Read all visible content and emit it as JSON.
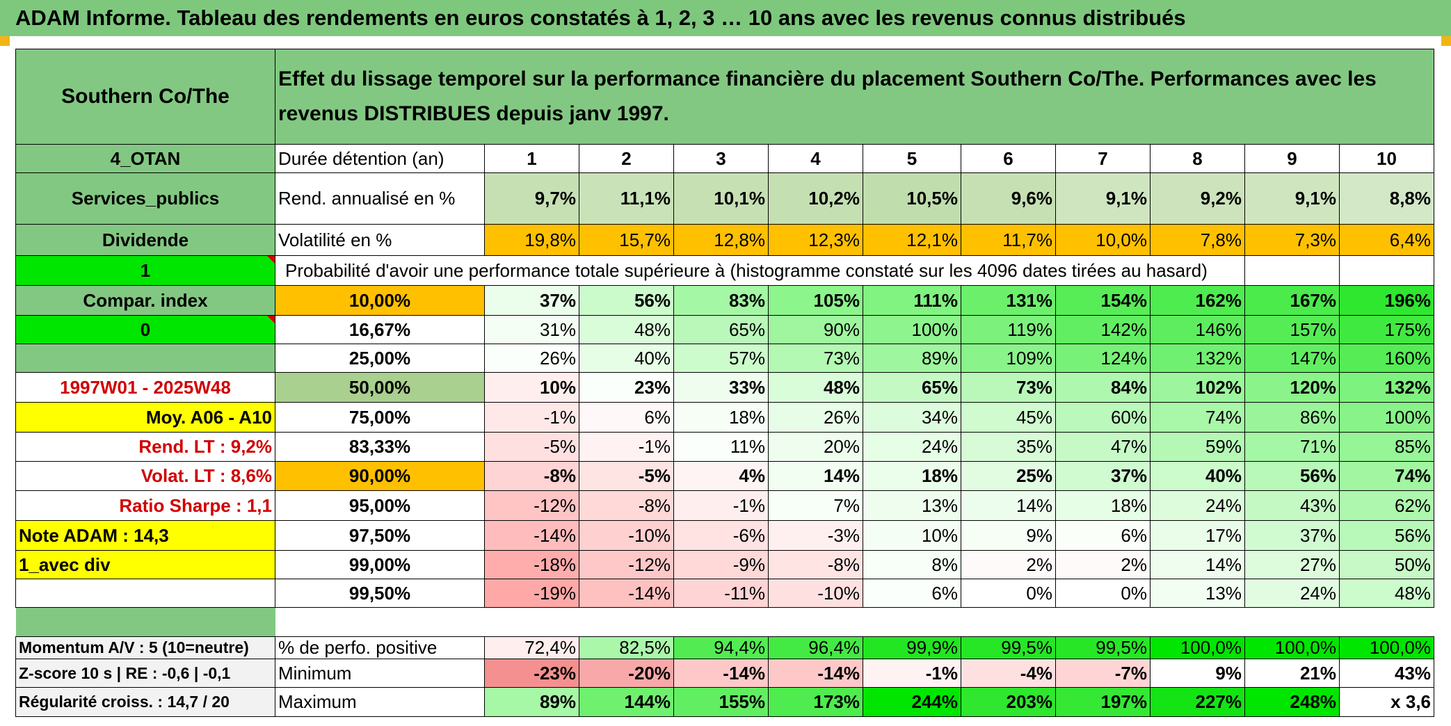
{
  "title": "ADAM Informe. Tableau des rendements en euros constatés à 1, 2, 3 … 10 ans avec les revenus connus distribués",
  "header": {
    "fund_name": "Southern Co/The",
    "description": "Effet du lissage temporel sur la performance financière du placement Southern Co/The. Performances avec les revenus DISTRIBUES depuis janv 1997."
  },
  "sidebar": {
    "category": "4_OTAN",
    "sector": "Services_publics",
    "distribution": "Dividende",
    "flag1": "1",
    "compar_index": "Compar. index",
    "flag2": "0",
    "period": "1997W01 - 2025W48",
    "avg": "Moy. A06 - A10",
    "rend_lt": "Rend. LT :   9,2%",
    "volat_lt": "Volat. LT :   8,6%",
    "sharpe": "Ratio Sharpe :   1,1",
    "note": "Note ADAM : 14,3",
    "variant": "1_avec div",
    "momentum": "Momentum A/V : 5 (10=neutre)",
    "zscore": "Z-score 10 s | RE : -0,6 | -0,1",
    "regularite": "Régularité croiss. : 14,7 / 20"
  },
  "table": {
    "duration_label": "Durée détention (an)",
    "years": [
      "1",
      "2",
      "3",
      "4",
      "5",
      "6",
      "7",
      "8",
      "9",
      "10"
    ],
    "rend_label": "Rend. annualisé en %",
    "rend": [
      "9,7%",
      "11,1%",
      "10,1%",
      "10,2%",
      "10,5%",
      "9,6%",
      "9,1%",
      "9,2%",
      "9,1%",
      "8,8%"
    ],
    "vol_label": "Volatilité en %",
    "vol": [
      "19,8%",
      "15,7%",
      "12,8%",
      "12,3%",
      "12,1%",
      "11,7%",
      "10,0%",
      "7,8%",
      "7,3%",
      "6,4%"
    ],
    "prob_label": "Probabilité d'avoir une performance totale supérieure à (histogramme constaté sur les 4096 dates tirées au hasard)",
    "quantiles": [
      {
        "p": "10,00%",
        "v": [
          "37%",
          "56%",
          "83%",
          "105%",
          "111%",
          "131%",
          "154%",
          "162%",
          "167%",
          "196%"
        ]
      },
      {
        "p": "16,67%",
        "v": [
          "31%",
          "48%",
          "65%",
          "90%",
          "100%",
          "119%",
          "142%",
          "146%",
          "157%",
          "175%"
        ]
      },
      {
        "p": "25,00%",
        "v": [
          "26%",
          "40%",
          "57%",
          "73%",
          "89%",
          "109%",
          "124%",
          "132%",
          "147%",
          "160%"
        ]
      },
      {
        "p": "50,00%",
        "v": [
          "10%",
          "23%",
          "33%",
          "48%",
          "65%",
          "73%",
          "84%",
          "102%",
          "120%",
          "132%"
        ]
      },
      {
        "p": "75,00%",
        "v": [
          "-1%",
          "6%",
          "18%",
          "26%",
          "34%",
          "45%",
          "60%",
          "74%",
          "86%",
          "100%"
        ]
      },
      {
        "p": "83,33%",
        "v": [
          "-5%",
          "-1%",
          "11%",
          "20%",
          "24%",
          "35%",
          "47%",
          "59%",
          "71%",
          "85%"
        ]
      },
      {
        "p": "90,00%",
        "v": [
          "-8%",
          "-5%",
          "4%",
          "14%",
          "18%",
          "25%",
          "37%",
          "40%",
          "56%",
          "74%"
        ]
      },
      {
        "p": "95,00%",
        "v": [
          "-12%",
          "-8%",
          "-1%",
          "7%",
          "13%",
          "14%",
          "18%",
          "24%",
          "43%",
          "62%"
        ]
      },
      {
        "p": "97,50%",
        "v": [
          "-14%",
          "-10%",
          "-6%",
          "-3%",
          "10%",
          "9%",
          "6%",
          "17%",
          "37%",
          "56%"
        ]
      },
      {
        "p": "99,00%",
        "v": [
          "-18%",
          "-12%",
          "-9%",
          "-8%",
          "8%",
          "2%",
          "2%",
          "14%",
          "27%",
          "50%"
        ]
      },
      {
        "p": "99,50%",
        "v": [
          "-19%",
          "-14%",
          "-11%",
          "-10%",
          "6%",
          "0%",
          "0%",
          "13%",
          "24%",
          "48%"
        ]
      }
    ],
    "pos_label": "% de perfo. positive",
    "pos": [
      "72,4%",
      "82,5%",
      "94,4%",
      "96,4%",
      "99,9%",
      "99,5%",
      "99,5%",
      "100,0%",
      "100,0%",
      "100,0%"
    ],
    "min_label": "Minimum",
    "min": [
      "-23%",
      "-20%",
      "-14%",
      "-14%",
      "-1%",
      "-4%",
      "-7%",
      "9%",
      "21%",
      "43%"
    ],
    "max_label": "Maximum",
    "max": [
      "89%",
      "144%",
      "155%",
      "173%",
      "244%",
      "203%",
      "197%",
      "227%",
      "248%",
      "x 3,6"
    ]
  },
  "colors": {
    "title_green": "#7dc87d",
    "sidebar_green": "#82c882",
    "bright_green": "#00e600",
    "yellow": "#ffff00",
    "orange": "#ffc000",
    "red_text": "#d10000",
    "gray": "#f2f2f2",
    "rend_greens": [
      "#c6e0b4",
      "#c9e2b8",
      "#c6e0b4",
      "#c4dfb2",
      "#c0ddad",
      "#c6e0b4",
      "#cfe5c0",
      "#cce3bc",
      "#cfe5c0",
      "#d3e8c6"
    ],
    "quantile_bg": [
      [
        "#ebfdeb",
        "#cbfbcb",
        "#a4f7a4",
        "#8cf58c",
        "#80f380",
        "#6cf06c",
        "#56ed56",
        "#4fec4f",
        "#4aeb4a",
        "#2fe72f"
      ],
      [
        "#f4fef4",
        "#d9fcd9",
        "#b9f8b9",
        "#9ff69f",
        "#8ef48e",
        "#7cf27c",
        "#62ee62",
        "#5eed5e",
        "#55ec55",
        "#40e940"
      ],
      [
        "#fbfffb",
        "#e6fde6",
        "#ccfbcc",
        "#b3f8b3",
        "#9ef69e",
        "#8af38a",
        "#77f177",
        "#70f070",
        "#62ee62",
        "#55ec55"
      ],
      [
        "#ffeeee",
        "#fbfffb",
        "#eefdee",
        "#d9fcd9",
        "#c4f9c4",
        "#b9f8b9",
        "#aef7ae",
        "#9df69d",
        "#8af38a",
        "#7ef27e"
      ],
      [
        "#ffe8e8",
        "#fff8f8",
        "#f6fef6",
        "#e8fde8",
        "#ddfcdd",
        "#cffbcf",
        "#bbf8bb",
        "#a9f7a9",
        "#9af59a",
        "#88f388"
      ],
      [
        "#ffe0e0",
        "#fff2f2",
        "#fbfffb",
        "#eefdee",
        "#e6fde6",
        "#d6fbd6",
        "#c6f9c6",
        "#b5f8b5",
        "#a4f7a4",
        "#96f596"
      ],
      [
        "#ffd4d4",
        "#ffe4e4",
        "#fff4f4",
        "#f2fef2",
        "#ebfdeb",
        "#e2fce2",
        "#d0fbd0",
        "#ccfbcc",
        "#b8f8b8",
        "#a2f6a2"
      ],
      [
        "#ffc4c4",
        "#ffd8d8",
        "#ffeeee",
        "#f8fff8",
        "#eefdee",
        "#edfded",
        "#e6fde6",
        "#dcfcdc",
        "#c4f9c4",
        "#aef7ae"
      ],
      [
        "#ffbcbc",
        "#ffd0d0",
        "#ffe2e2",
        "#fff0f0",
        "#f4fef4",
        "#f6fef6",
        "#fafffa",
        "#e9fde9",
        "#d0fbd0",
        "#b8f8b8"
      ],
      [
        "#ffacac",
        "#ffc8c8",
        "#ffd8d8",
        "#ffe4e4",
        "#f8fff8",
        "#fffafa",
        "#fffafa",
        "#eefdee",
        "#dcfcdc",
        "#c6f9c6"
      ],
      [
        "#ffa8a8",
        "#ffc0c0",
        "#ffd4d4",
        "#ffe0e0",
        "#fbfffb",
        "#ffffff",
        "#ffffff",
        "#f2fef2",
        "#e2fce2",
        "#ccfbcc"
      ]
    ],
    "pos_bg": [
      "#ffeeee",
      "#aaf7aa",
      "#52ec52",
      "#44ea44",
      "#22e622",
      "#26e626",
      "#26e626",
      "#00e600",
      "#00e600",
      "#00e600"
    ],
    "min_bg": [
      "#f59090",
      "#f8a8a8",
      "#ffc8c8",
      "#ffc8c8",
      "#fff2f2",
      "#ffe0e0",
      "#ffd4d4",
      "#ffffff",
      "#ffffff",
      "#ffffff"
    ],
    "max_bg": [
      "#a6f7a6",
      "#6ff06f",
      "#62ee62",
      "#4eec4e",
      "#00e600",
      "#2ee72e",
      "#34e834",
      "#14e414",
      "#00e600",
      "#ffffff"
    ]
  }
}
